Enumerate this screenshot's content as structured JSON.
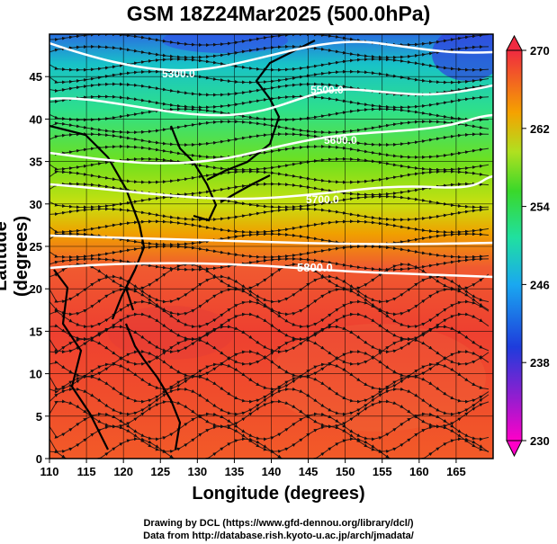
{
  "title": "GSM 18Z24Mar2025 (500.0hPa)",
  "axes": {
    "xlabel": "Longitude (degrees)",
    "ylabel": "Latitude  (degrees)",
    "xticks": [
      "110",
      "115",
      "120",
      "125",
      "130",
      "135",
      "140",
      "145",
      "150",
      "155",
      "160",
      "165"
    ],
    "xtick_values": [
      110,
      115,
      120,
      125,
      130,
      135,
      140,
      145,
      150,
      155,
      160,
      165
    ],
    "yticks": [
      "0",
      "5",
      "10",
      "15",
      "20",
      "25",
      "30",
      "35",
      "40",
      "45"
    ],
    "ytick_values": [
      0,
      5,
      10,
      15,
      20,
      25,
      30,
      35,
      40,
      45
    ],
    "xlim": [
      110,
      170
    ],
    "ylim": [
      0,
      50
    ]
  },
  "colorbar": {
    "labels": [
      "270",
      "262",
      "254",
      "246",
      "238",
      "230"
    ],
    "values": [
      270,
      262,
      254,
      246,
      238,
      230
    ],
    "range": [
      230,
      270
    ]
  },
  "contours": [
    {
      "label": "5300.0"
    },
    {
      "label": "5500.0"
    },
    {
      "label": "5600.0"
    },
    {
      "label": "5700.0"
    },
    {
      "label": "5800.0"
    }
  ],
  "credits": {
    "line1": "Drawing by DCL (https://www.gfd-dennou.org/library/dcl/)",
    "line2": "Data from http://database.rish.kyoto-u.ac.jp/arch/jmadata/"
  },
  "chart_data": {
    "type": "heatmap",
    "title": "GSM 18Z24Mar2025 (500.0hPa)",
    "xlabel": "Longitude (degrees)",
    "ylabel": "Latitude  (degrees)",
    "xlim": [
      110,
      170
    ],
    "ylim": [
      0,
      50
    ],
    "colorbar_range": [
      230,
      270
    ],
    "contour_levels": [
      5300,
      5500,
      5600,
      5700,
      5800
    ]
  }
}
